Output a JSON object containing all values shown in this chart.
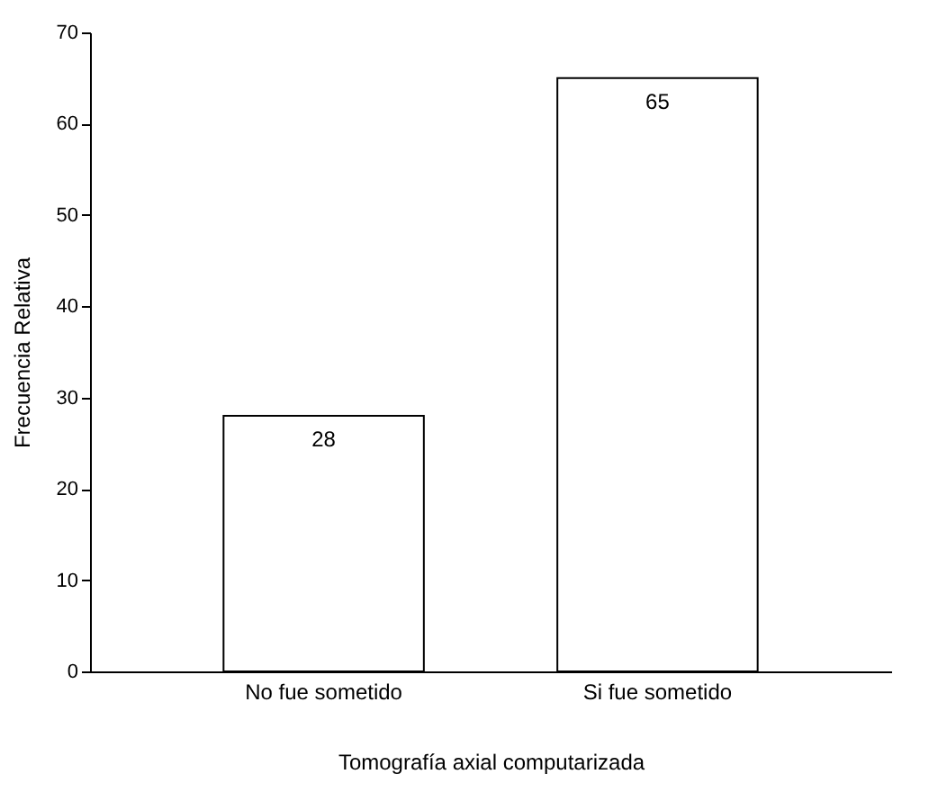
{
  "chart_data": {
    "type": "bar",
    "xlabel": "Tomografía axial computarizada",
    "ylabel": "Frecuencia Relativa",
    "categories": [
      "No fue sometido",
      "Si fue sometido"
    ],
    "values": [
      28,
      65
    ],
    "color": "#ffffff",
    "ylim": [
      0,
      70
    ],
    "yticks": [
      0,
      10,
      20,
      30,
      40,
      50,
      60,
      70
    ],
    "grid": false,
    "data_labels": true
  }
}
